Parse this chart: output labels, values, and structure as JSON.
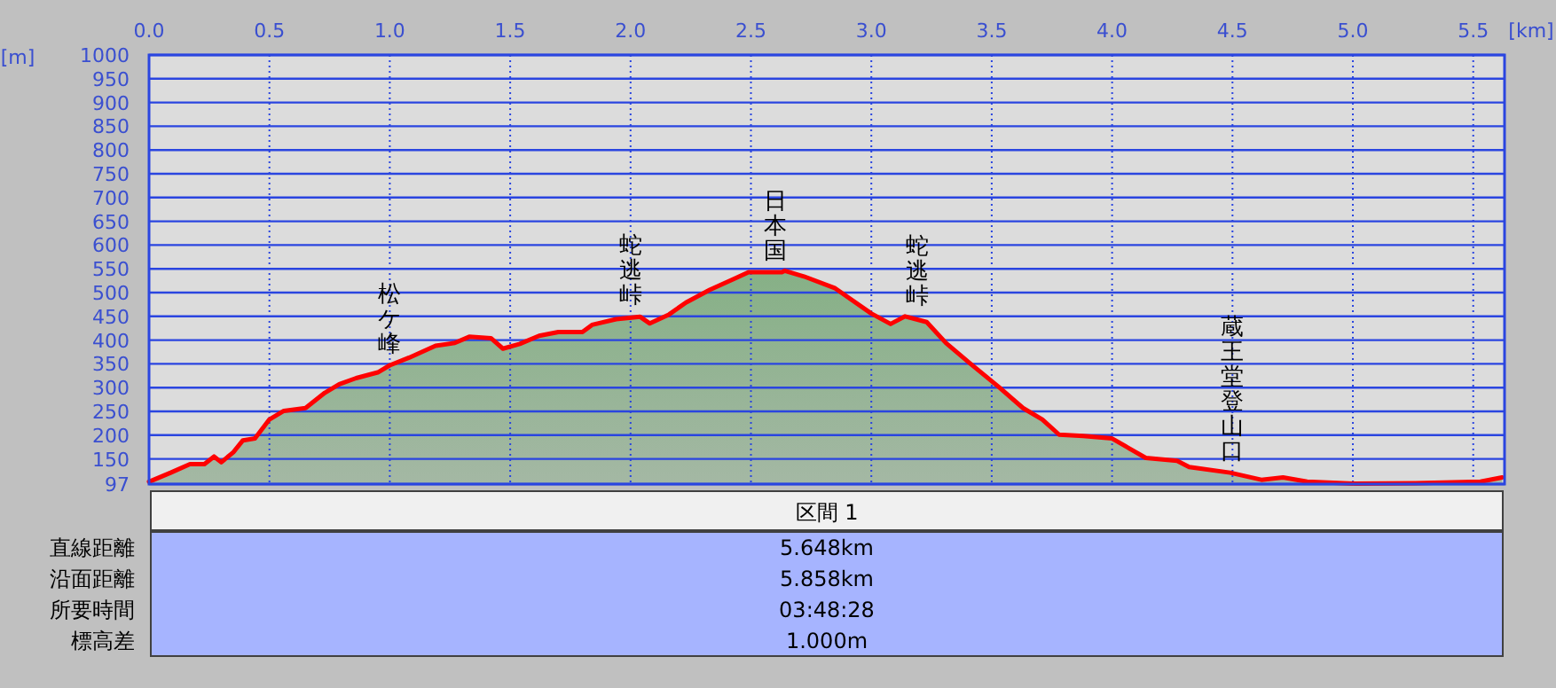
{
  "chart_data": {
    "type": "area",
    "xlabel": "[km]",
    "ylabel": "[m]",
    "xlim": [
      0,
      5.63
    ],
    "ylim": [
      97,
      1000
    ],
    "grid": true,
    "xticks": [
      {
        "value": 0,
        "label": "0.0"
      },
      {
        "value": 0.5,
        "label": "0.5"
      },
      {
        "value": 1,
        "label": "1.0"
      },
      {
        "value": 1.5,
        "label": "1.5"
      },
      {
        "value": 2,
        "label": "2.0"
      },
      {
        "value": 2.5,
        "label": "2.5"
      },
      {
        "value": 3,
        "label": "3.0"
      },
      {
        "value": 3.5,
        "label": "3.5"
      },
      {
        "value": 4,
        "label": "4.0"
      },
      {
        "value": 4.5,
        "label": "4.5"
      },
      {
        "value": 5,
        "label": "5.0"
      },
      {
        "value": 5.5,
        "label": "5.5"
      }
    ],
    "yticks": [
      97,
      150,
      200,
      250,
      300,
      350,
      400,
      450,
      500,
      550,
      600,
      650,
      700,
      750,
      800,
      850,
      900,
      950,
      1000
    ],
    "series": [
      {
        "color": "#ff0000",
        "x": [
          0,
          0.09,
          0.17,
          0.23,
          0.27,
          0.3,
          0.35,
          0.39,
          0.44,
          0.5,
          0.56,
          0.65,
          0.73,
          0.79,
          0.86,
          0.95,
          1,
          1.08,
          1.19,
          1.27,
          1.33,
          1.42,
          1.47,
          1.54,
          1.62,
          1.7,
          1.8,
          1.84,
          1.94,
          2.04,
          2.08,
          2.16,
          2.23,
          2.33,
          2.43,
          2.49,
          2.63,
          2.64,
          2.72,
          2.85,
          3,
          3.08,
          3.14,
          3.23,
          3.31,
          3.41,
          3.53,
          3.63,
          3.71,
          3.78,
          3.88,
          4,
          4.14,
          4.27,
          4.32,
          4.49,
          4.62,
          4.71,
          4.81,
          5.01,
          5.26,
          5.53,
          5.62
        ],
        "values": [
          102,
          121,
          139,
          139,
          155,
          143,
          164,
          189,
          193,
          233,
          251,
          257,
          289,
          307,
          320,
          332,
          347,
          363,
          388,
          394,
          407,
          404,
          382,
          392,
          409,
          417,
          417,
          432,
          444,
          449,
          435,
          454,
          479,
          506,
          529,
          543,
          543,
          546,
          534,
          509,
          456,
          434,
          450,
          438,
          394,
          351,
          301,
          257,
          233,
          201,
          198,
          193,
          152,
          146,
          133,
          121,
          106,
          111,
          102,
          98,
          99,
          102,
          111
        ]
      }
    ],
    "annotations": [
      {
        "text": "松ケ峰",
        "x": 1.0,
        "y": 347
      },
      {
        "text": "蛇逃峠",
        "x": 2.0,
        "y": 449
      },
      {
        "text": "日本国",
        "x": 2.6,
        "y": 543
      },
      {
        "text": "蛇逃峠",
        "x": 3.19,
        "y": 447
      },
      {
        "text": "蔵王堂登山口",
        "x": 4.5,
        "y": 121
      },
      "区間 1",
      "直線距離",
      "5.648km",
      "沿面距離",
      "5.858km",
      "所要時間",
      "03:48:28",
      "標高差",
      "1.000m"
    ]
  }
}
